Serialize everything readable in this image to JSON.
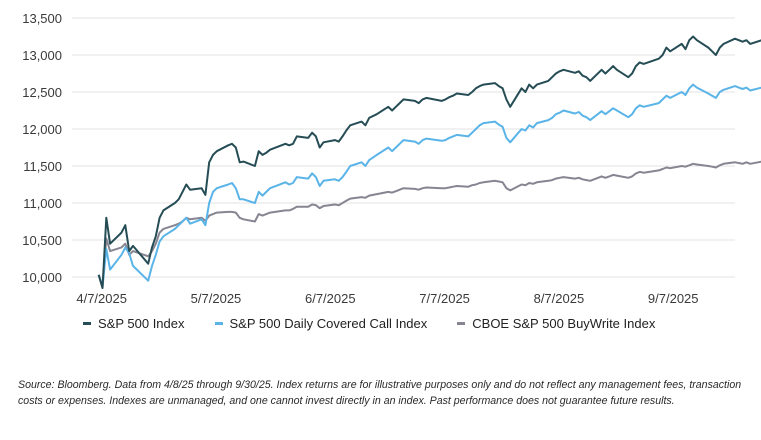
{
  "chart_data": {
    "type": "line",
    "title": "",
    "xlabel": "",
    "ylabel": "",
    "ylim": [
      10000,
      13500
    ],
    "yticks": [
      "10,000",
      "10,500",
      "11,000",
      "11,500",
      "12,000",
      "12,500",
      "13,000",
      "13,500"
    ],
    "ytick_values": [
      10000,
      10500,
      11000,
      11500,
      12000,
      12500,
      13000,
      13500
    ],
    "xticks": [
      "4/7/2025",
      "5/7/2025",
      "6/7/2025",
      "7/7/2025",
      "8/7/2025",
      "9/7/2025"
    ],
    "xtick_days": [
      7,
      37,
      67,
      97,
      127,
      157
    ],
    "xlim_days": [
      0,
      174
    ],
    "grid": "horizontal",
    "legend_position": "bottom",
    "x_dates": [
      "4/8/2025",
      "4/9/2025",
      "4/10/2025",
      "4/11/2025",
      "4/14/2025",
      "4/15/2025",
      "4/16/2025",
      "4/17/2025",
      "4/21/2025",
      "4/22/2025",
      "4/23/2025",
      "4/24/2025",
      "4/25/2025",
      "4/28/2025",
      "4/29/2025",
      "4/30/2025",
      "5/1/2025",
      "5/2/2025",
      "5/5/2025",
      "5/6/2025",
      "5/7/2025",
      "5/8/2025",
      "5/9/2025",
      "5/12/2025",
      "5/13/2025",
      "5/14/2025",
      "5/15/2025",
      "5/16/2025",
      "5/19/2025",
      "5/20/2025",
      "5/21/2025",
      "5/22/2025",
      "5/23/2025",
      "5/27/2025",
      "5/28/2025",
      "5/29/2025",
      "5/30/2025",
      "6/2/2025",
      "6/3/2025",
      "6/4/2025",
      "6/5/2025",
      "6/6/2025",
      "6/9/2025",
      "6/10/2025",
      "6/11/2025",
      "6/12/2025",
      "6/13/2025",
      "6/16/2025",
      "6/17/2025",
      "6/18/2025",
      "6/20/2025",
      "6/23/2025",
      "6/24/2025",
      "6/25/2025",
      "6/26/2025",
      "6/27/2025",
      "6/30/2025",
      "7/1/2025",
      "7/2/2025",
      "7/3/2025",
      "7/7/2025",
      "7/8/2025",
      "7/9/2025",
      "7/10/2025",
      "7/11/2025",
      "7/14/2025",
      "7/15/2025",
      "7/16/2025",
      "7/17/2025",
      "7/18/2025",
      "7/21/2025",
      "7/22/2025",
      "7/23/2025",
      "7/24/2025",
      "7/25/2025",
      "7/28/2025",
      "7/29/2025",
      "7/30/2025",
      "7/31/2025",
      "8/1/2025",
      "8/4/2025",
      "8/5/2025",
      "8/6/2025",
      "8/7/2025",
      "8/8/2025",
      "8/11/2025",
      "8/12/2025",
      "8/13/2025",
      "8/14/2025",
      "8/15/2025",
      "8/18/2025",
      "8/19/2025",
      "8/20/2025",
      "8/21/2025",
      "8/22/2025",
      "8/25/2025",
      "8/26/2025",
      "8/27/2025",
      "8/28/2025",
      "8/29/2025",
      "9/2/2025",
      "9/3/2025",
      "9/4/2025",
      "9/5/2025",
      "9/8/2025",
      "9/9/2025",
      "9/10/2025",
      "9/11/2025",
      "9/12/2025",
      "9/15/2025",
      "9/16/2025",
      "9/17/2025",
      "9/18/2025",
      "9/19/2025",
      "9/22/2025",
      "9/23/2025",
      "9/24/2025",
      "9/25/2025",
      "9/26/2025",
      "9/29/2025",
      "9/30/2025"
    ],
    "series": [
      {
        "name": "S&P 500 Index",
        "color": "#264d55",
        "values": [
          10030,
          9850,
          10800,
          10450,
          10600,
          10700,
          10350,
          10420,
          10180,
          10400,
          10550,
          10800,
          10900,
          11000,
          11050,
          11150,
          11250,
          11180,
          11200,
          11110,
          11550,
          11650,
          11700,
          11780,
          11800,
          11750,
          11550,
          11560,
          11500,
          11700,
          11650,
          11680,
          11720,
          11800,
          11780,
          11800,
          11900,
          11880,
          11950,
          11900,
          11750,
          11820,
          11850,
          11830,
          11900,
          11980,
          12050,
          12100,
          12050,
          12150,
          12200,
          12300,
          12250,
          12300,
          12350,
          12400,
          12380,
          12350,
          12400,
          12420,
          12380,
          12400,
          12430,
          12450,
          12480,
          12460,
          12500,
          12550,
          12580,
          12600,
          12620,
          12580,
          12550,
          12400,
          12300,
          12550,
          12500,
          12600,
          12550,
          12600,
          12650,
          12700,
          12750,
          12780,
          12800,
          12760,
          12780,
          12720,
          12700,
          12650,
          12800,
          12750,
          12800,
          12850,
          12800,
          12700,
          12750,
          12850,
          12900,
          12880,
          12950,
          13000,
          13100,
          13050,
          13150,
          13080,
          13200,
          13250,
          13200,
          13100,
          13050,
          13000,
          13100,
          13150,
          13220,
          13200,
          13180,
          13200,
          13150,
          13200,
          13220
        ]
      },
      {
        "name": "S&P 500 Daily Covered Call Index",
        "color": "#5ab4e8",
        "values": [
          10030,
          9870,
          10380,
          10100,
          10300,
          10400,
          10320,
          10150,
          9950,
          10150,
          10300,
          10480,
          10550,
          10650,
          10700,
          10750,
          10800,
          10720,
          10780,
          10700,
          11000,
          11150,
          11200,
          11250,
          11270,
          11200,
          11050,
          11050,
          11000,
          11150,
          11100,
          11150,
          11200,
          11280,
          11250,
          11270,
          11350,
          11330,
          11400,
          11350,
          11230,
          11300,
          11320,
          11300,
          11350,
          11420,
          11500,
          11550,
          11500,
          11580,
          11650,
          11750,
          11700,
          11750,
          11800,
          11850,
          11830,
          11800,
          11850,
          11870,
          11840,
          11850,
          11880,
          11900,
          11920,
          11900,
          11950,
          12000,
          12050,
          12080,
          12100,
          12060,
          12030,
          11880,
          11820,
          12000,
          11980,
          12050,
          12020,
          12080,
          12120,
          12150,
          12200,
          12220,
          12250,
          12210,
          12230,
          12180,
          12160,
          12120,
          12240,
          12200,
          12240,
          12280,
          12250,
          12160,
          12200,
          12280,
          12320,
          12300,
          12350,
          12400,
          12450,
          12420,
          12500,
          12460,
          12550,
          12600,
          12560,
          12480,
          12450,
          12420,
          12500,
          12530,
          12580,
          12560,
          12540,
          12560,
          12520,
          12560,
          12600
        ]
      },
      {
        "name": "CBOE S&P 500 BuyWrite Index",
        "color": "#868591",
        "values": [
          10030,
          9860,
          10520,
          10350,
          10400,
          10450,
          10300,
          10350,
          10280,
          10350,
          10450,
          10600,
          10650,
          10700,
          10720,
          10750,
          10800,
          10780,
          10800,
          10760,
          10830,
          10850,
          10870,
          10880,
          10880,
          10870,
          10800,
          10780,
          10750,
          10850,
          10830,
          10850,
          10870,
          10900,
          10900,
          10920,
          10950,
          10950,
          10980,
          10970,
          10930,
          10960,
          10980,
          10970,
          11000,
          11030,
          11060,
          11080,
          11070,
          11100,
          11120,
          11150,
          11140,
          11160,
          11180,
          11200,
          11190,
          11180,
          11200,
          11210,
          11200,
          11200,
          11210,
          11220,
          11230,
          11220,
          11240,
          11250,
          11270,
          11280,
          11300,
          11290,
          11280,
          11200,
          11170,
          11250,
          11240,
          11270,
          11260,
          11280,
          11300,
          11310,
          11330,
          11340,
          11350,
          11330,
          11340,
          11320,
          11310,
          11300,
          11360,
          11340,
          11360,
          11380,
          11370,
          11340,
          11360,
          11400,
          11420,
          11410,
          11440,
          11460,
          11480,
          11470,
          11500,
          11490,
          11510,
          11530,
          11520,
          11500,
          11490,
          11480,
          11510,
          11530,
          11550,
          11540,
          11530,
          11550,
          11530,
          11560,
          11600
        ]
      }
    ]
  },
  "source_note": "Source: Bloomberg. Data from 4/8/25 through 9/30/25. Index returns are for illustrative purposes only and do not reflect any management fees, transaction costs or expenses. Indexes are unmanaged, and one cannot invest directly in an index. Past performance does not guarantee future results."
}
